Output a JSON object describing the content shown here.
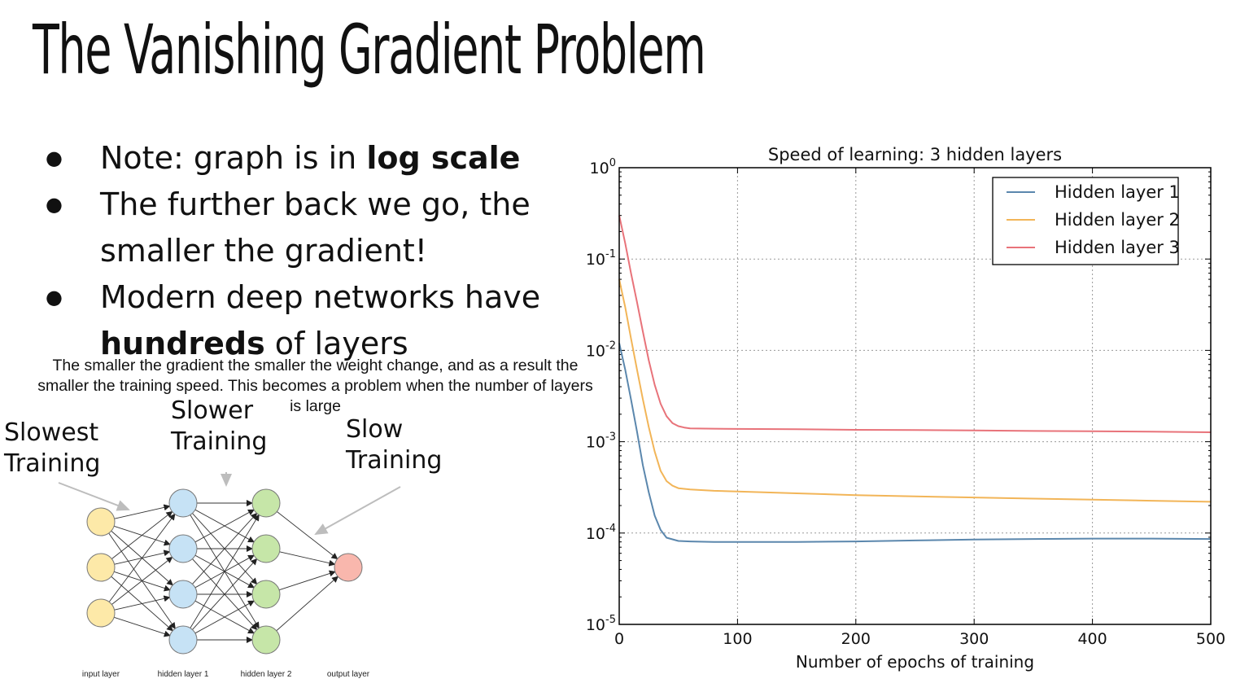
{
  "slide": {
    "title": "The Vanishing Gradient Problem",
    "bullets": [
      {
        "before": "Note: graph is in ",
        "bold": "log scale",
        "after": ""
      },
      {
        "before": "The further back we go, the smaller the gradient!",
        "bold": "",
        "after": ""
      },
      {
        "before": "Modern deep networks have ",
        "bold": "hundreds",
        "after": " of layers"
      }
    ],
    "caption": "The smaller the gradient the smaller the weight change, and as a result the smaller the training speed. This becomes a problem when the number of layers is large"
  },
  "network": {
    "annotations": {
      "slowest": "Slowest Training",
      "slower": "Slower Training",
      "slow": "Slow Training"
    },
    "layer_labels": [
      "input layer",
      "hidden layer 1",
      "hidden layer 2",
      "output layer"
    ],
    "colors": {
      "input": "#fde9a8",
      "hidden1": "#c6e2f5",
      "hidden2": "#c6e6a8",
      "output": "#f9b7ad"
    }
  },
  "chart_data": {
    "type": "line",
    "title": "Speed of learning: 3 hidden layers",
    "xlabel": "Number of epochs of training",
    "ylabel": "",
    "xlim": [
      0,
      500
    ],
    "ylim": [
      1e-05,
      1
    ],
    "yscale": "log",
    "xticks": [
      0,
      100,
      200,
      300,
      400,
      500
    ],
    "yticks": [
      {
        "value": 1,
        "base": "10",
        "exp": "0"
      },
      {
        "value": 0.1,
        "base": "10",
        "exp": "-1"
      },
      {
        "value": 0.01,
        "base": "10",
        "exp": "-2"
      },
      {
        "value": 0.001,
        "base": "10",
        "exp": "-3"
      },
      {
        "value": 0.0001,
        "base": "10",
        "exp": "-4"
      },
      {
        "value": 1e-05,
        "base": "10",
        "exp": "-5"
      }
    ],
    "grid": true,
    "legend_position": "top-right",
    "series": [
      {
        "name": "Hidden layer 1",
        "color": "#5b87ad",
        "x": [
          0,
          5,
          10,
          15,
          20,
          25,
          30,
          35,
          40,
          50,
          60,
          80,
          100,
          150,
          200,
          250,
          300,
          350,
          400,
          450,
          500
        ],
        "y": [
          0.012,
          0.0062,
          0.0029,
          0.0013,
          0.00055,
          0.00028,
          0.000155,
          0.000108,
          8.9e-05,
          8.2e-05,
          8.1e-05,
          8e-05,
          8e-05,
          8e-05,
          8.1e-05,
          8.3e-05,
          8.5e-05,
          8.6e-05,
          8.7e-05,
          8.7e-05,
          8.6e-05
        ]
      },
      {
        "name": "Hidden layer 2",
        "color": "#f2b558",
        "x": [
          0,
          5,
          10,
          15,
          20,
          25,
          30,
          35,
          40,
          45,
          50,
          60,
          80,
          100,
          150,
          200,
          250,
          300,
          350,
          400,
          450,
          500
        ],
        "y": [
          0.06,
          0.03,
          0.0135,
          0.0062,
          0.0029,
          0.00145,
          0.00078,
          0.00048,
          0.00037,
          0.00033,
          0.00031,
          0.0003,
          0.00029,
          0.000285,
          0.000272,
          0.00026,
          0.000252,
          0.000245,
          0.000238,
          0.000232,
          0.000226,
          0.00022
        ]
      },
      {
        "name": "Hidden layer 3",
        "color": "#e8737a",
        "x": [
          0,
          5,
          10,
          15,
          20,
          25,
          30,
          35,
          40,
          45,
          50,
          55,
          60,
          80,
          100,
          150,
          200,
          250,
          300,
          350,
          400,
          450,
          500
        ],
        "y": [
          0.3,
          0.15,
          0.07,
          0.034,
          0.016,
          0.0078,
          0.0042,
          0.0026,
          0.0019,
          0.0016,
          0.00148,
          0.00143,
          0.0014,
          0.00139,
          0.00138,
          0.00137,
          0.00135,
          0.00134,
          0.00133,
          0.00131,
          0.0013,
          0.00129,
          0.00127
        ]
      }
    ]
  }
}
